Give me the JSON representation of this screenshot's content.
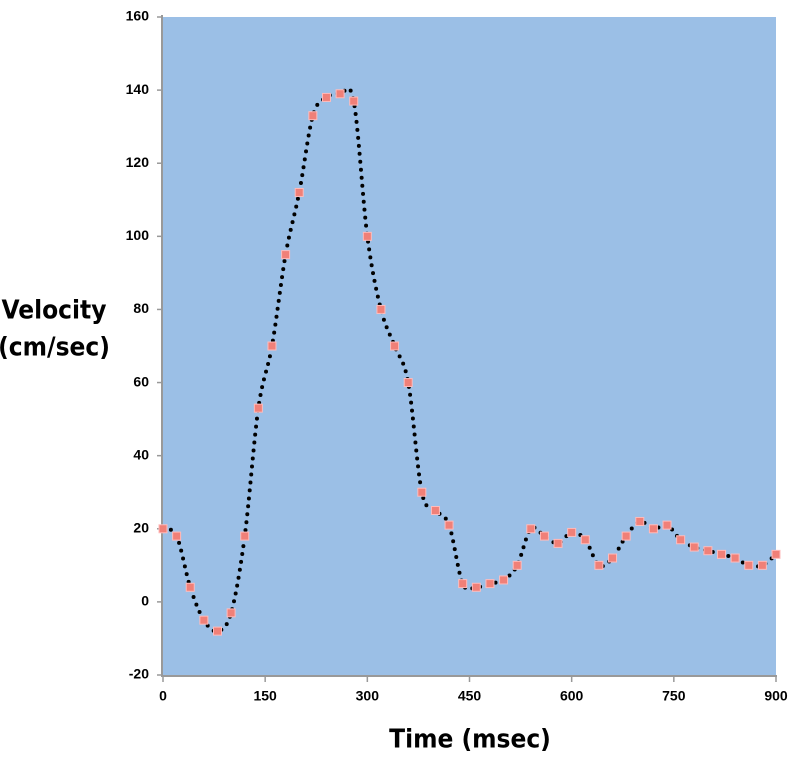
{
  "chart_data": {
    "type": "scatter",
    "x_label": "Time (msec)",
    "y_label": [
      "Velocity",
      "(cm/sec)"
    ],
    "x": [
      0,
      20,
      40,
      60,
      80,
      100,
      120,
      140,
      160,
      180,
      200,
      220,
      240,
      260,
      280,
      300,
      320,
      340,
      360,
      380,
      400,
      420,
      440,
      460,
      480,
      500,
      520,
      540,
      560,
      580,
      600,
      620,
      640,
      660,
      680,
      700,
      720,
      740,
      760,
      780,
      800,
      820,
      840,
      860,
      880,
      900
    ],
    "values": [
      20,
      18,
      4,
      -5,
      -8,
      -3,
      18,
      53,
      70,
      95,
      112,
      133,
      138,
      139,
      137,
      100,
      80,
      70,
      60,
      30,
      25,
      21,
      5,
      4,
      5,
      6,
      10,
      20,
      18,
      16,
      19,
      17,
      10,
      12,
      18,
      22,
      20,
      21,
      17,
      15,
      14,
      13,
      12,
      10,
      10,
      13
    ],
    "color": "#f08078",
    "line_color": "#000000",
    "background": "#9bbfe6",
    "xlim": [
      0,
      900
    ],
    "xticks": [
      0,
      150,
      300,
      450,
      600,
      750,
      900
    ],
    "ylim": [
      -20,
      160
    ],
    "yticks": [
      -20,
      0,
      20,
      40,
      60,
      80,
      100,
      120,
      140,
      160
    ]
  }
}
